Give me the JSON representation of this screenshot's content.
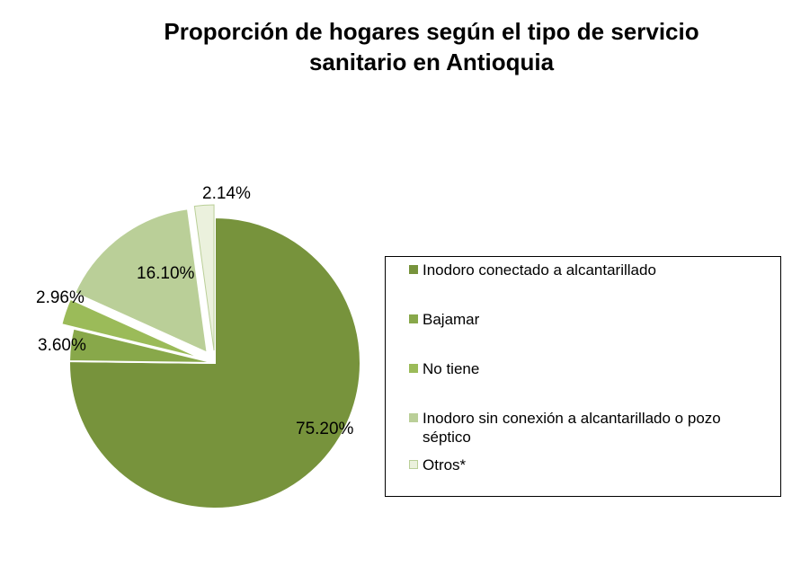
{
  "chart_data": {
    "type": "pie",
    "title_lines": [
      "Proporción de hogares según el tipo de servicio",
      "sanitario en Antioquia"
    ],
    "legend_position": "right",
    "slices": [
      {
        "label": "Inodoro conectado a alcantarillado",
        "value": 75.2,
        "value_label": "75.20%",
        "color": "#77933c",
        "exploded": false
      },
      {
        "label": "Bajamar",
        "value": 3.6,
        "value_label": "3.60%",
        "color": "#88a84a",
        "exploded": false
      },
      {
        "label": "No tiene",
        "value": 2.96,
        "value_label": "2.96%",
        "color": "#9bbb59",
        "exploded": true
      },
      {
        "label": "Inodoro sin conexión a alcantarillado o pozo séptico",
        "value": 16.1,
        "value_label": "16.10%",
        "color": "#bacf98",
        "exploded": true
      },
      {
        "label": "Otros*",
        "value": 2.14,
        "value_label": "2.14%",
        "color": "#ebf1dd",
        "exploded": true
      }
    ]
  }
}
